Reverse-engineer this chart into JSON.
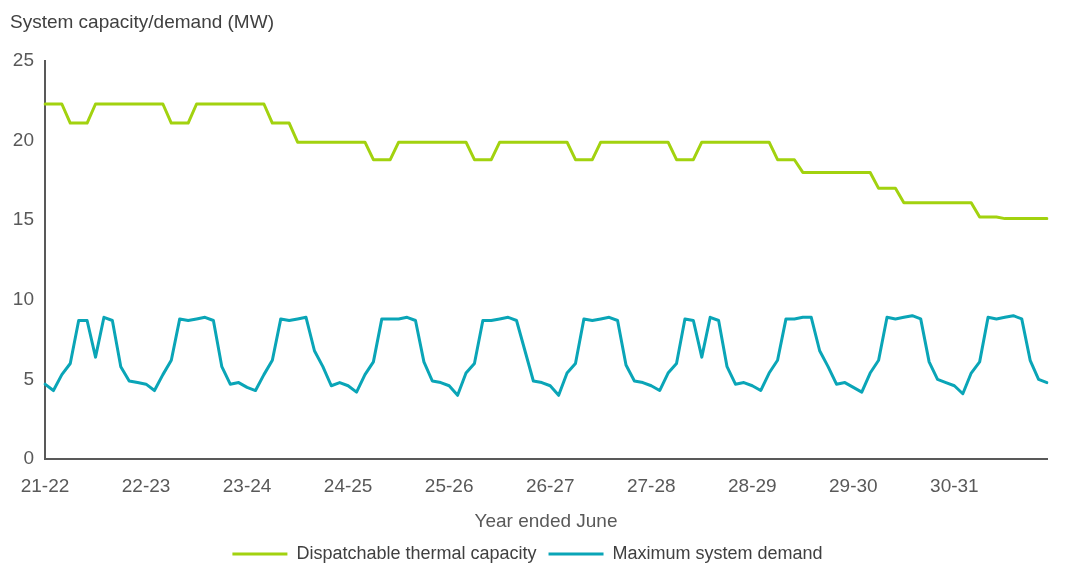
{
  "chart_data": {
    "type": "line",
    "ylabel": "System capacity/demand (MW)",
    "xlabel": "Year ended June",
    "categories": [
      "21-22",
      null,
      null,
      null,
      null,
      null,
      null,
      null,
      null,
      null,
      null,
      null,
      "22-23",
      null,
      null,
      null,
      null,
      null,
      null,
      null,
      null,
      null,
      null,
      null,
      "23-24",
      null,
      null,
      null,
      null,
      null,
      null,
      null,
      null,
      null,
      null,
      null,
      "24-25",
      null,
      null,
      null,
      null,
      null,
      null,
      null,
      null,
      null,
      null,
      null,
      "25-26",
      null,
      null,
      null,
      null,
      null,
      null,
      null,
      null,
      null,
      null,
      null,
      "26-27",
      null,
      null,
      null,
      null,
      null,
      null,
      null,
      null,
      null,
      null,
      null,
      "27-28",
      null,
      null,
      null,
      null,
      null,
      null,
      null,
      null,
      null,
      null,
      null,
      "28-29",
      null,
      null,
      null,
      null,
      null,
      null,
      null,
      null,
      null,
      null,
      null,
      "29-30",
      null,
      null,
      null,
      null,
      null,
      null,
      null,
      null,
      null,
      null,
      null,
      "30-31",
      null,
      null,
      null,
      null,
      null,
      null,
      null,
      null,
      null,
      null,
      null
    ],
    "series": [
      {
        "name": "Dispatchable thermal capacity",
        "color": "#a2d20f",
        "values": [
          22.3,
          22.3,
          22.3,
          21.1,
          21.1,
          21.1,
          22.3,
          22.3,
          22.3,
          22.3,
          22.3,
          22.3,
          22.3,
          22.3,
          22.3,
          21.1,
          21.1,
          21.1,
          22.3,
          22.3,
          22.3,
          22.3,
          22.3,
          22.3,
          22.3,
          22.3,
          22.3,
          21.1,
          21.1,
          21.1,
          19.9,
          19.9,
          19.9,
          19.9,
          19.9,
          19.9,
          19.9,
          19.9,
          19.9,
          18.8,
          18.8,
          18.8,
          19.9,
          19.9,
          19.9,
          19.9,
          19.9,
          19.9,
          19.9,
          19.9,
          19.9,
          18.8,
          18.8,
          18.8,
          19.9,
          19.9,
          19.9,
          19.9,
          19.9,
          19.9,
          19.9,
          19.9,
          19.9,
          18.8,
          18.8,
          18.8,
          19.9,
          19.9,
          19.9,
          19.9,
          19.9,
          19.9,
          19.9,
          19.9,
          19.9,
          18.8,
          18.8,
          18.8,
          19.9,
          19.9,
          19.9,
          19.9,
          19.9,
          19.9,
          19.9,
          19.9,
          19.9,
          18.8,
          18.8,
          18.8,
          18.0,
          18.0,
          18.0,
          18.0,
          18.0,
          18.0,
          18.0,
          18.0,
          18.0,
          17.0,
          17.0,
          17.0,
          16.1,
          16.1,
          16.1,
          16.1,
          16.1,
          16.1,
          16.1,
          16.1,
          16.1,
          15.2,
          15.2,
          15.2,
          15.1,
          15.1,
          15.1,
          15.1,
          15.1,
          15.1
        ]
      },
      {
        "name": "Maximum system demand",
        "color": "#0aa5b7",
        "values": [
          4.7,
          4.3,
          5.3,
          6.0,
          8.7,
          8.7,
          6.4,
          8.9,
          8.7,
          5.8,
          4.9,
          4.8,
          4.7,
          4.3,
          5.3,
          6.2,
          8.8,
          8.7,
          8.8,
          8.9,
          8.7,
          5.8,
          4.7,
          4.8,
          4.5,
          4.3,
          5.3,
          6.2,
          8.8,
          8.7,
          8.8,
          8.9,
          6.8,
          5.8,
          4.6,
          4.8,
          4.6,
          4.2,
          5.3,
          6.1,
          8.8,
          8.8,
          8.8,
          8.9,
          8.7,
          6.1,
          4.9,
          4.8,
          4.6,
          4.0,
          5.4,
          6.0,
          8.7,
          8.7,
          8.8,
          8.9,
          8.7,
          6.8,
          4.9,
          4.8,
          4.6,
          4.0,
          5.4,
          6.0,
          8.8,
          8.7,
          8.8,
          8.9,
          8.7,
          5.9,
          4.9,
          4.8,
          4.6,
          4.3,
          5.4,
          6.0,
          8.8,
          8.7,
          6.4,
          8.9,
          8.7,
          5.8,
          4.7,
          4.8,
          4.6,
          4.3,
          5.4,
          6.2,
          8.8,
          8.8,
          8.9,
          8.9,
          6.8,
          5.8,
          4.7,
          4.8,
          4.5,
          4.2,
          5.4,
          6.2,
          8.9,
          8.8,
          8.9,
          9.0,
          8.8,
          6.1,
          5.0,
          4.8,
          4.6,
          4.1,
          5.4,
          6.1,
          8.9,
          8.8,
          8.9,
          9.0,
          8.8,
          6.2,
          5.0,
          4.8
        ]
      }
    ],
    "ylim": [
      0,
      25
    ],
    "yticks": [
      0,
      5,
      10,
      15,
      20,
      25
    ],
    "grid": false,
    "legend": "bottom",
    "marker": "none"
  }
}
